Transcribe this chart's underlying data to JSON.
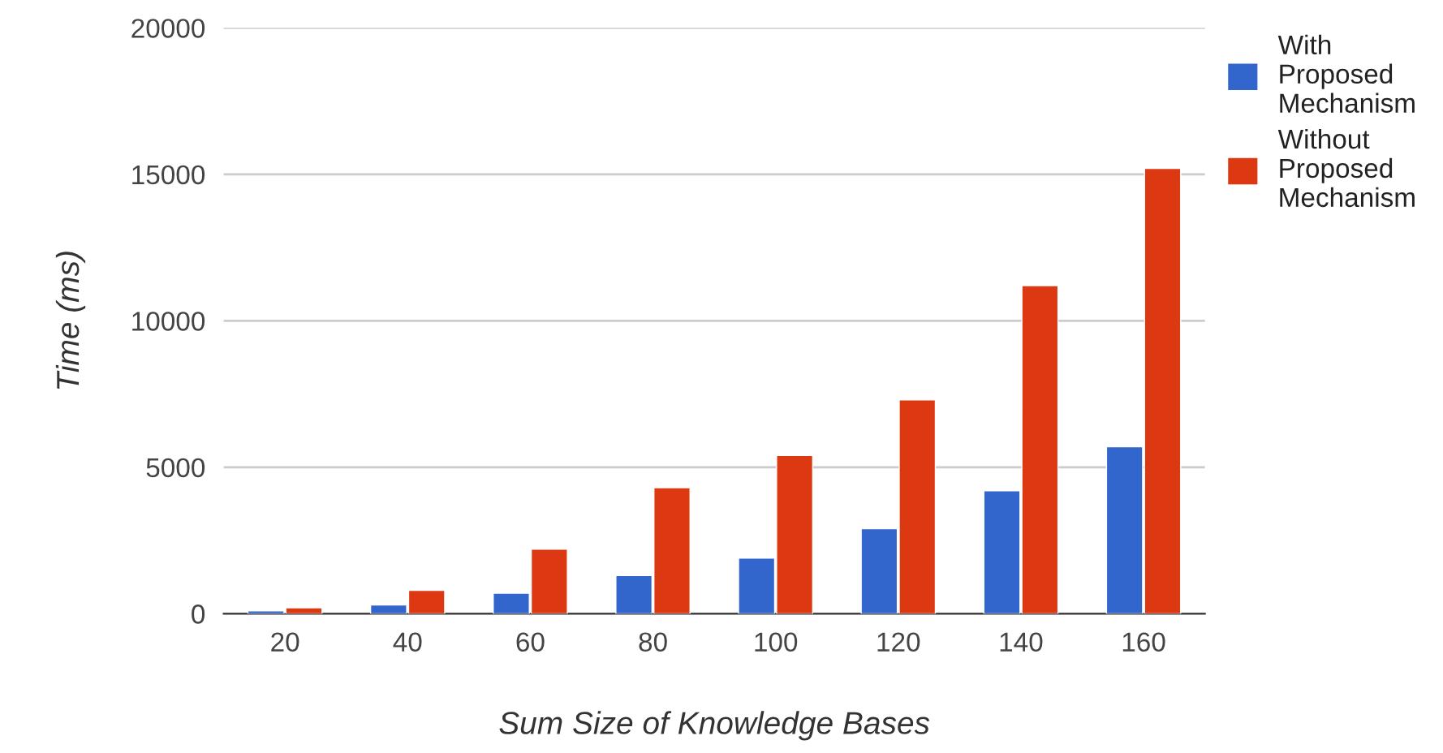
{
  "chart_data": {
    "type": "bar",
    "xlabel": "Sum Size of Knowledge Bases",
    "ylabel": "Time (ms)",
    "categories": [
      "20",
      "40",
      "60",
      "80",
      "100",
      "120",
      "140",
      "160"
    ],
    "series": [
      {
        "name": "With Proposed Mechanism",
        "color": "#3366cc",
        "values": [
          100,
          300,
          700,
          1300,
          1900,
          2900,
          4200,
          5700
        ]
      },
      {
        "name": "Without Proposed Mechanism",
        "color": "#dc3912",
        "values": [
          200,
          800,
          2200,
          4300,
          5400,
          7300,
          11200,
          15200
        ]
      }
    ],
    "ylim": [
      0,
      20000
    ],
    "yticks": [
      0,
      5000,
      10000,
      15000,
      20000
    ],
    "grid": "y",
    "legend": "top right"
  }
}
